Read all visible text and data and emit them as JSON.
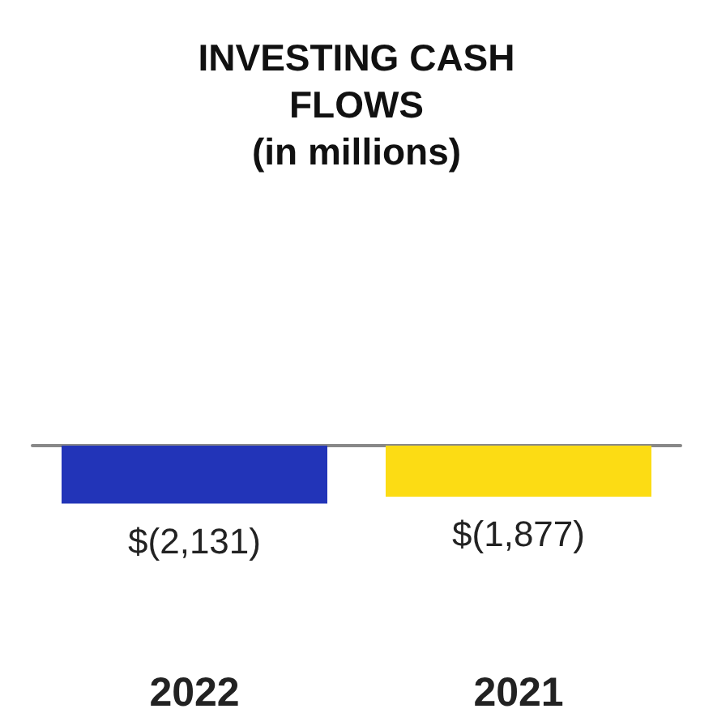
{
  "chart_data": {
    "type": "bar",
    "title": "INVESTING CASH\nFLOWS\n(in millions)",
    "categories": [
      "2022",
      "2021"
    ],
    "values": [
      -2131,
      -1877
    ],
    "colors": [
      "#2234b8",
      "#fcdc14"
    ],
    "value_labels": [
      "$(2,131)",
      "$(1,877)"
    ],
    "grid": false
  }
}
